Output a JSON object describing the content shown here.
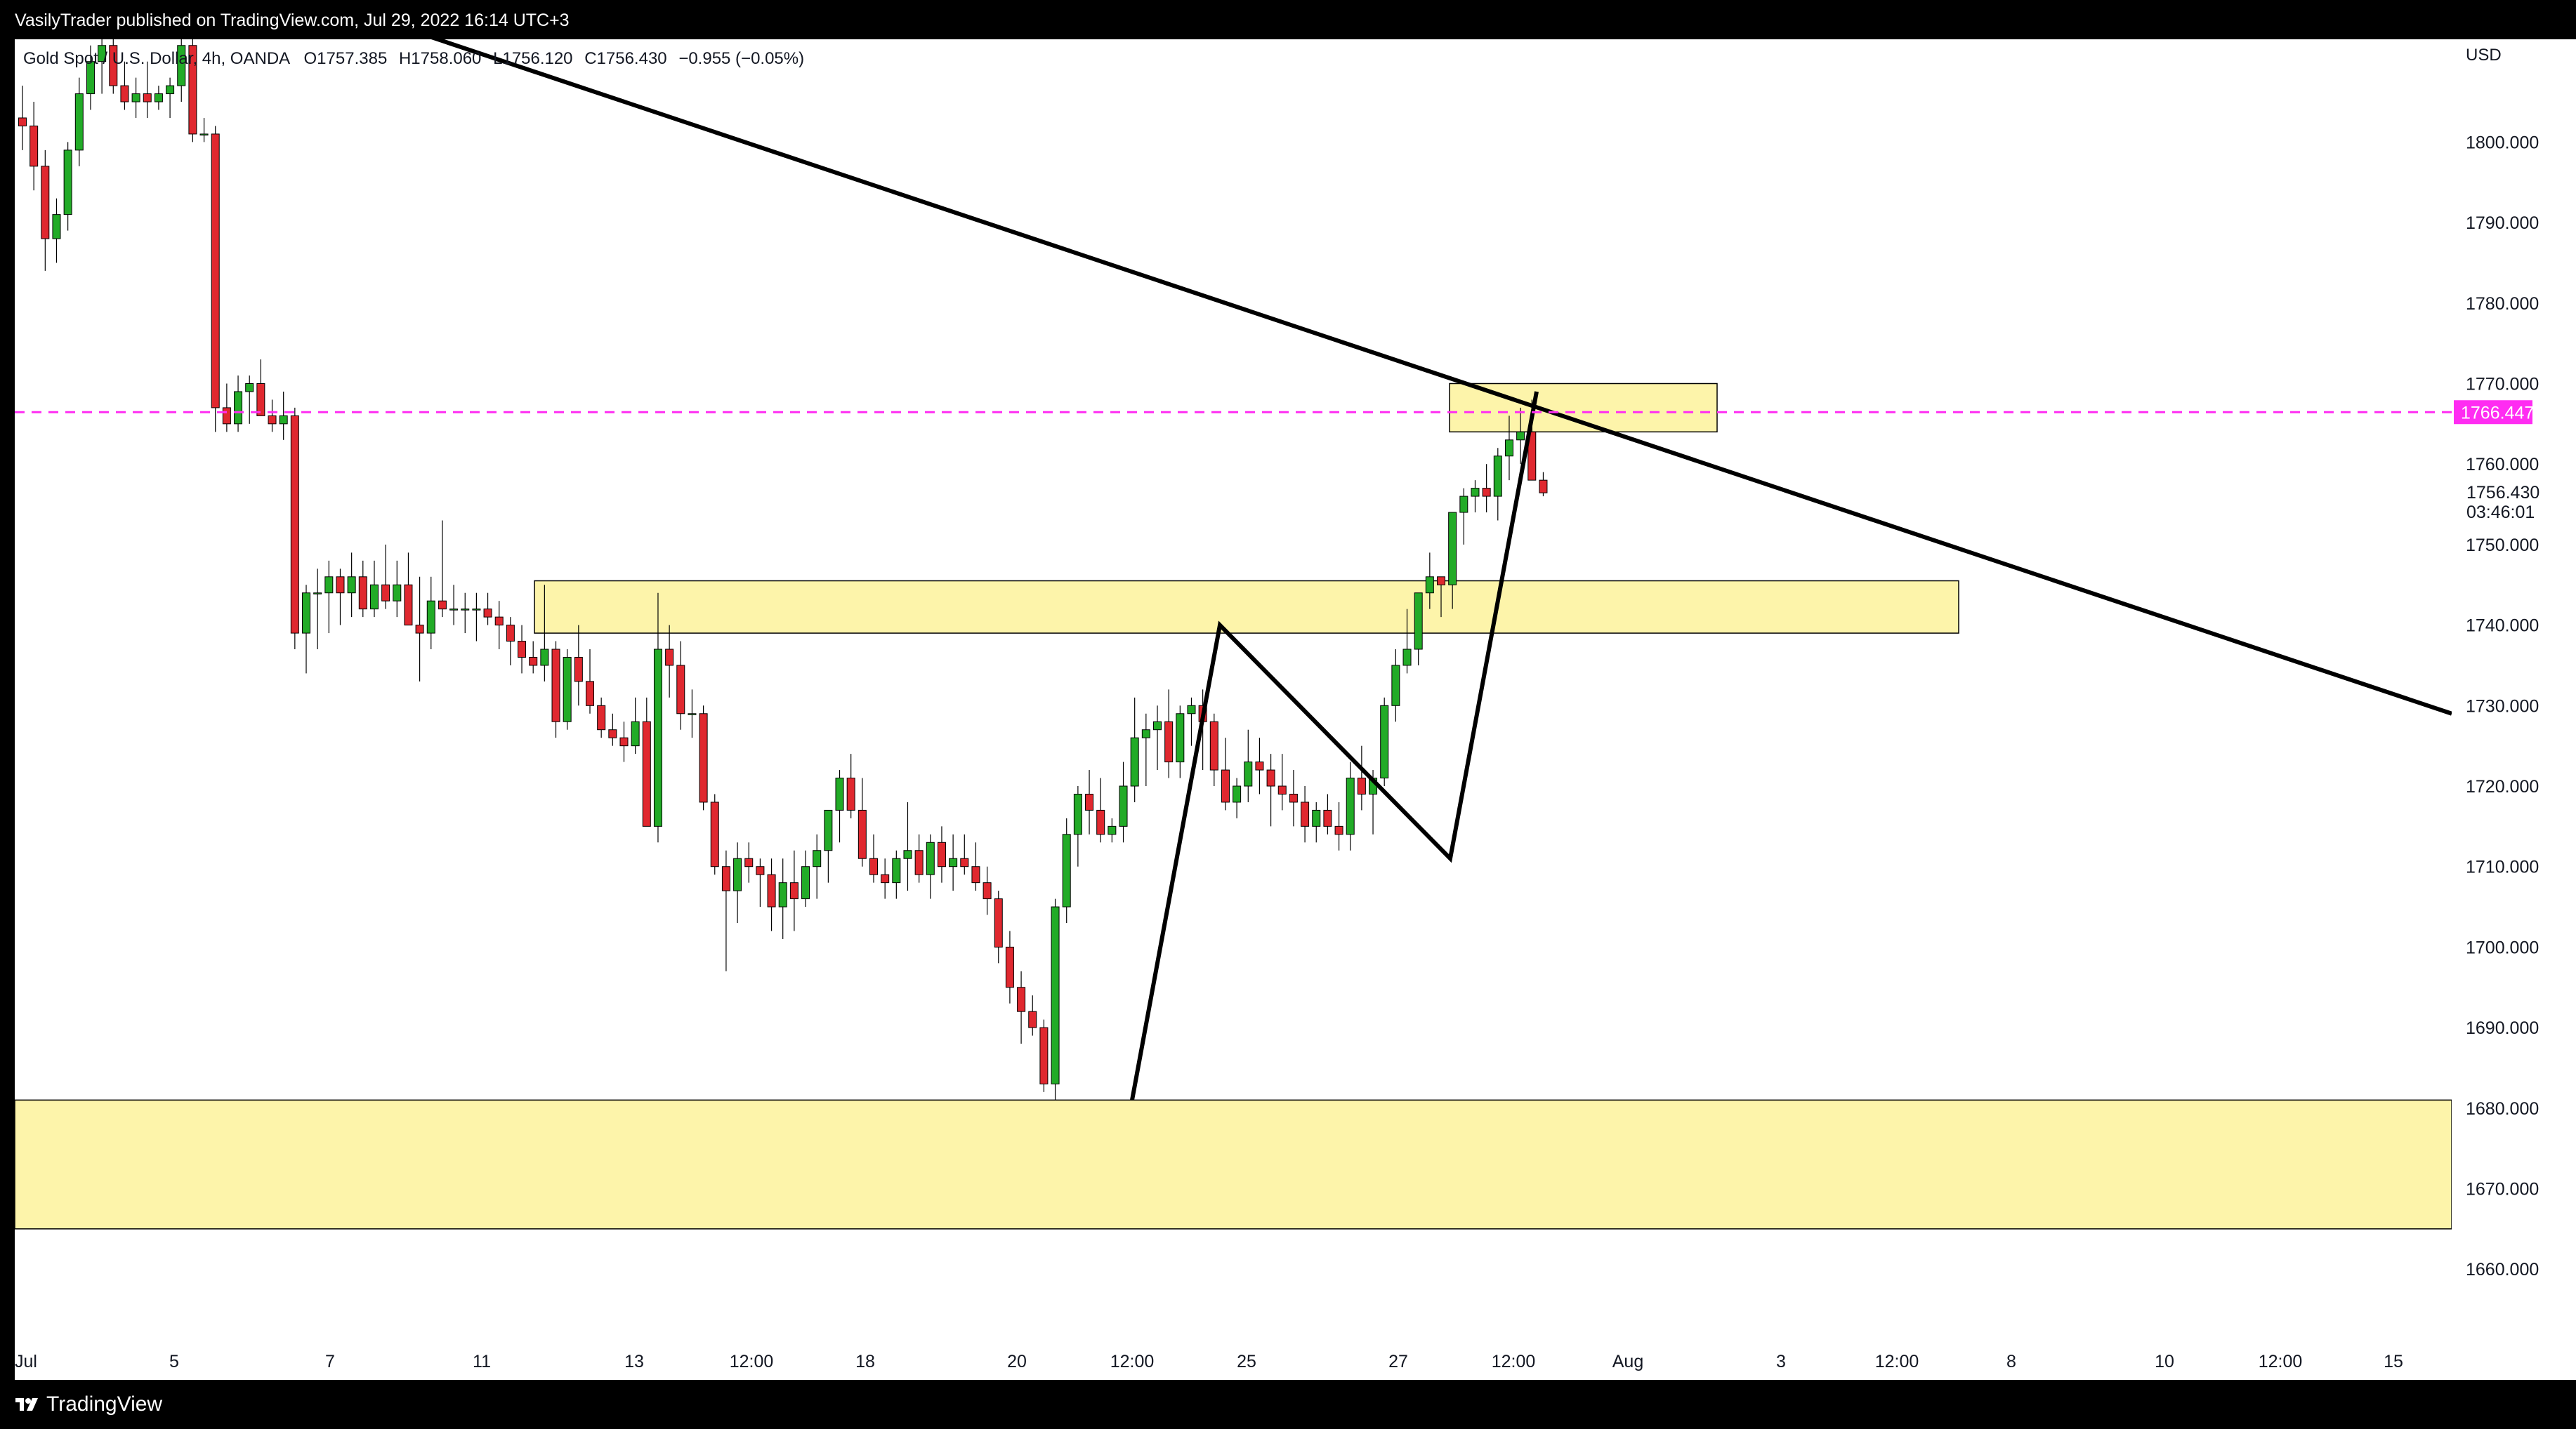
{
  "publisher_line": "VasilyTrader published on TradingView.com, Jul 29, 2022 16:14 UTC+3",
  "footer_brand": "TradingView",
  "colors": {
    "up": "#22ab27",
    "down": "#e0282f",
    "zone_fill": "#fdf3a3",
    "price_line": "#ff2cf2",
    "trendline": "#000000"
  },
  "chart_data": {
    "type": "candlestick",
    "symbol_line": "Gold Spot / U.S. Dollar, 4h, OANDA",
    "ohlc_text": {
      "open": "O1757.385",
      "high": "H1758.060",
      "low": "L1756.120",
      "close": "C1756.430",
      "change": "−0.955 (−0.05%)"
    },
    "currency": "USD",
    "ylim": [
      1654,
      1811
    ],
    "y_ticks": [
      "1800.000",
      "1790.000",
      "1780.000",
      "1770.000",
      "1760.000",
      "1750.000",
      "1740.000",
      "1730.000",
      "1720.000",
      "1710.000",
      "1700.000",
      "1690.000",
      "1680.000",
      "1670.000",
      "1660.000"
    ],
    "x_ticks": [
      "Jul",
      "5",
      "7",
      "11",
      "13",
      "12:00",
      "18",
      "20",
      "12:00",
      "25",
      "27",
      "12:00",
      "Aug",
      "3",
      "12:00",
      "8",
      "10",
      "12:00",
      "15"
    ],
    "price_tag": "1766.447",
    "last_price": "1756.430",
    "countdown": "03:46:01",
    "candles": [
      [
        1803,
        1807,
        1799,
        1802
      ],
      [
        1802,
        1805,
        1794,
        1797
      ],
      [
        1797,
        1799,
        1784,
        1788
      ],
      [
        1788,
        1793,
        1785,
        1791
      ],
      [
        1791,
        1800,
        1789,
        1799
      ],
      [
        1799,
        1808,
        1797,
        1806
      ],
      [
        1806,
        1812,
        1804,
        1810
      ],
      [
        1810,
        1813,
        1806,
        1812
      ],
      [
        1812,
        1814,
        1806,
        1807
      ],
      [
        1807,
        1810,
        1804,
        1805
      ],
      [
        1805,
        1808,
        1803,
        1806
      ],
      [
        1806,
        1810,
        1803,
        1805
      ],
      [
        1805,
        1807,
        1804,
        1806
      ],
      [
        1806,
        1808,
        1803,
        1807
      ],
      [
        1807,
        1814,
        1805,
        1812
      ],
      [
        1812,
        1813,
        1800,
        1801
      ],
      [
        1801,
        1803,
        1800,
        1801
      ],
      [
        1801,
        1802,
        1764,
        1767
      ],
      [
        1767,
        1770,
        1764,
        1765
      ],
      [
        1765,
        1771,
        1764,
        1769
      ],
      [
        1769,
        1771,
        1765,
        1770
      ],
      [
        1770,
        1773,
        1766,
        1766
      ],
      [
        1766,
        1768,
        1764,
        1765
      ],
      [
        1765,
        1769,
        1763,
        1766
      ],
      [
        1766,
        1767,
        1737,
        1739
      ],
      [
        1739,
        1745,
        1734,
        1744
      ],
      [
        1744,
        1747,
        1737,
        1744
      ],
      [
        1744,
        1748,
        1739,
        1746
      ],
      [
        1746,
        1747,
        1740,
        1744
      ],
      [
        1744,
        1749,
        1741,
        1746
      ],
      [
        1746,
        1748,
        1741,
        1742
      ],
      [
        1742,
        1748,
        1741,
        1745
      ],
      [
        1745,
        1750,
        1742,
        1743
      ],
      [
        1743,
        1748,
        1741,
        1745
      ],
      [
        1745,
        1749,
        1740,
        1740
      ],
      [
        1740,
        1746,
        1733,
        1739
      ],
      [
        1739,
        1746,
        1737,
        1743
      ],
      [
        1743,
        1753,
        1741,
        1742
      ],
      [
        1742,
        1745,
        1740,
        1742
      ],
      [
        1742,
        1744,
        1739,
        1742
      ],
      [
        1742,
        1744,
        1738,
        1742
      ],
      [
        1742,
        1744,
        1740,
        1741
      ],
      [
        1741,
        1743,
        1737,
        1740
      ],
      [
        1740,
        1741,
        1735,
        1738
      ],
      [
        1738,
        1740,
        1734,
        1736
      ],
      [
        1736,
        1738,
        1734,
        1735
      ],
      [
        1735,
        1745,
        1733,
        1737
      ],
      [
        1737,
        1738,
        1726,
        1728
      ],
      [
        1728,
        1737,
        1727,
        1736
      ],
      [
        1736,
        1740,
        1730,
        1733
      ],
      [
        1733,
        1737,
        1729,
        1730
      ],
      [
        1730,
        1731,
        1726,
        1727
      ],
      [
        1727,
        1729,
        1725,
        1726
      ],
      [
        1726,
        1728,
        1723,
        1725
      ],
      [
        1725,
        1731,
        1724,
        1728
      ],
      [
        1728,
        1731,
        1715,
        1715
      ],
      [
        1715,
        1744,
        1713,
        1737
      ],
      [
        1737,
        1740,
        1731,
        1735
      ],
      [
        1735,
        1738,
        1727,
        1729
      ],
      [
        1729,
        1732,
        1726,
        1729
      ],
      [
        1729,
        1730,
        1717,
        1718
      ],
      [
        1718,
        1719,
        1709,
        1710
      ],
      [
        1710,
        1712,
        1697,
        1707
      ],
      [
        1707,
        1713,
        1703,
        1711
      ],
      [
        1711,
        1713,
        1708,
        1710
      ],
      [
        1710,
        1711,
        1705,
        1709
      ],
      [
        1709,
        1711,
        1702,
        1705
      ],
      [
        1705,
        1711,
        1701,
        1708
      ],
      [
        1708,
        1712,
        1702,
        1706
      ],
      [
        1706,
        1712,
        1705,
        1710
      ],
      [
        1710,
        1714,
        1706,
        1712
      ],
      [
        1712,
        1717,
        1708,
        1717
      ],
      [
        1717,
        1722,
        1713,
        1721
      ],
      [
        1721,
        1724,
        1716,
        1717
      ],
      [
        1717,
        1721,
        1710,
        1711
      ],
      [
        1711,
        1714,
        1708,
        1709
      ],
      [
        1709,
        1711,
        1706,
        1708
      ],
      [
        1708,
        1712,
        1706,
        1711
      ],
      [
        1711,
        1718,
        1707,
        1712
      ],
      [
        1712,
        1714,
        1708,
        1709
      ],
      [
        1709,
        1714,
        1706,
        1713
      ],
      [
        1713,
        1715,
        1708,
        1710
      ],
      [
        1710,
        1714,
        1707,
        1711
      ],
      [
        1711,
        1714,
        1709,
        1710
      ],
      [
        1710,
        1713,
        1707,
        1708
      ],
      [
        1708,
        1710,
        1704,
        1706
      ],
      [
        1706,
        1707,
        1698,
        1700
      ],
      [
        1700,
        1702,
        1693,
        1695
      ],
      [
        1695,
        1697,
        1688,
        1692
      ],
      [
        1692,
        1694,
        1689,
        1690
      ],
      [
        1690,
        1691,
        1682,
        1683
      ],
      [
        1683,
        1706,
        1681,
        1705
      ],
      [
        1705,
        1716,
        1703,
        1714
      ],
      [
        1714,
        1720,
        1710,
        1719
      ],
      [
        1719,
        1722,
        1714,
        1717
      ],
      [
        1717,
        1721,
        1713,
        1714
      ],
      [
        1714,
        1716,
        1713,
        1715
      ],
      [
        1715,
        1723,
        1713,
        1720
      ],
      [
        1720,
        1731,
        1718,
        1726
      ],
      [
        1726,
        1729,
        1720,
        1727
      ],
      [
        1727,
        1730,
        1722,
        1728
      ],
      [
        1728,
        1732,
        1721,
        1723
      ],
      [
        1723,
        1730,
        1721,
        1729
      ],
      [
        1729,
        1731,
        1725,
        1730
      ],
      [
        1730,
        1732,
        1722,
        1728
      ],
      [
        1728,
        1729,
        1720,
        1722
      ],
      [
        1722,
        1726,
        1717,
        1718
      ],
      [
        1718,
        1721,
        1716,
        1720
      ],
      [
        1720,
        1727,
        1718,
        1723
      ],
      [
        1723,
        1726,
        1719,
        1722
      ],
      [
        1722,
        1724,
        1715,
        1720
      ],
      [
        1720,
        1724,
        1717,
        1719
      ],
      [
        1719,
        1722,
        1715,
        1718
      ],
      [
        1718,
        1720,
        1713,
        1715
      ],
      [
        1715,
        1718,
        1713,
        1717
      ],
      [
        1717,
        1719,
        1714,
        1715
      ],
      [
        1715,
        1718,
        1712,
        1714
      ],
      [
        1714,
        1723,
        1712,
        1721
      ],
      [
        1721,
        1725,
        1717,
        1719
      ],
      [
        1719,
        1722,
        1714,
        1721
      ],
      [
        1721,
        1731,
        1720,
        1730
      ],
      [
        1730,
        1737,
        1728,
        1735
      ],
      [
        1735,
        1742,
        1734,
        1737
      ],
      [
        1737,
        1744,
        1735,
        1744
      ],
      [
        1744,
        1749,
        1742,
        1746
      ],
      [
        1746,
        1746,
        1741,
        1745
      ],
      [
        1745,
        1754,
        1742,
        1754
      ],
      [
        1754,
        1757,
        1750,
        1756
      ],
      [
        1756,
        1758,
        1754,
        1757
      ],
      [
        1757,
        1760,
        1754,
        1756
      ],
      [
        1756,
        1762,
        1753,
        1761
      ],
      [
        1761,
        1766,
        1758,
        1763
      ],
      [
        1763,
        1767,
        1760,
        1764
      ],
      [
        1764,
        1768,
        1758,
        1758
      ],
      [
        1758,
        1759,
        1756,
        1756.43
      ]
    ],
    "zones": [
      {
        "from": 1745.5,
        "to": 1739
      },
      {
        "from": 1770,
        "to": 1764
      },
      {
        "from": 1681,
        "to": 1665
      }
    ],
    "trendline": [
      [
        1814,
        1812
      ],
      [
        1729,
        1728
      ]
    ],
    "path_points": [
      [
        1681,
        1681
      ],
      [
        1740,
        1740
      ],
      [
        1711,
        1711
      ],
      [
        1769,
        1769
      ]
    ]
  }
}
